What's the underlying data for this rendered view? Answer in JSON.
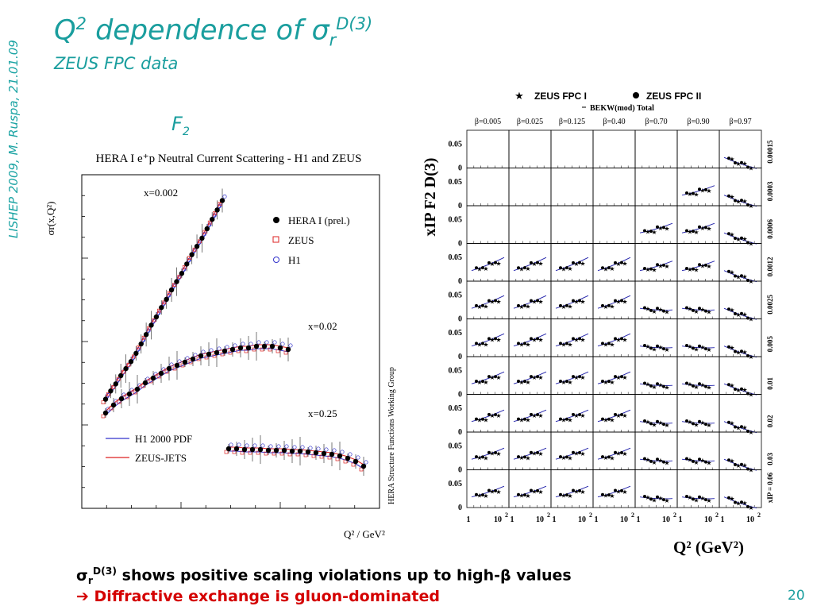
{
  "slide": {
    "side_label": "LISHEP 2009, M. Ruspa, 21.01.09",
    "title_pre": "Q",
    "title_sup": "2",
    "title_mid": " dependence of σ",
    "title_sub": "r",
    "title_sup2": "D(3)",
    "subtitle": "ZEUS FPC data",
    "f2_label": "F",
    "f2_sub": "2",
    "bottom_line1_sym": "σ",
    "bottom_line1_sub": "r",
    "bottom_line1_sup": "D(3)",
    "bottom_line1_text": " shows positive scaling violations up to high-β values",
    "bottom_line2_arrow": "➔",
    "bottom_line2_text": " Diffractive exchange is gluon-dominated",
    "page_number": "20"
  },
  "chart_data": [
    {
      "type": "scatter",
      "title": "HERA I e⁺p Neutral Current Scattering - H1 and ZEUS",
      "xlabel": "Q² / GeV²",
      "ylabel": "σr(x,Q²)",
      "side_note": "HERA Structure Functions Working Group",
      "legend": [
        "HERA I (prel.)",
        "ZEUS",
        "H1"
      ],
      "fit_legend": [
        "H1 2000 PDF",
        "ZEUS-JETS"
      ],
      "series": [
        {
          "name": "x=0.002",
          "values": [
            0.05,
            0.12,
            0.18,
            0.25,
            0.31,
            0.37,
            0.44,
            0.52,
            0.6,
            0.68,
            0.75,
            0.83,
            0.9,
            0.98,
            1.05,
            1.12,
            1.2,
            1.28,
            1.35,
            1.42,
            1.5,
            1.58,
            1.66,
            1.74
          ]
        },
        {
          "name": "x=0.02",
          "values": [
            0.05,
            0.1,
            0.14,
            0.17,
            0.2,
            0.24,
            0.27,
            0.3,
            0.33,
            0.35,
            0.37,
            0.39,
            0.41,
            0.42,
            0.43,
            0.44,
            0.45,
            0.46,
            0.46,
            0.47,
            0.47,
            0.47,
            0.46,
            0.45
          ]
        },
        {
          "name": "x=0.25",
          "values": [
            0.4,
            0.4,
            0.39,
            0.39,
            0.39,
            0.38,
            0.38,
            0.38,
            0.37,
            0.37,
            0.36,
            0.35,
            0.34,
            0.33,
            0.31,
            0.28,
            0.24,
            0.18
          ]
        }
      ]
    },
    {
      "type": "scatter",
      "ylabel": "xIP F2 D(3)",
      "xlabel": "Q² (GeV²)",
      "legend": [
        "ZEUS FPC I",
        "ZEUS FPC II"
      ],
      "fit_legend": [
        "BEKW(mod) Total"
      ],
      "columns": [
        "β=0.005",
        "β=0.025",
        "β=0.125",
        "β=0.40",
        "β=0.70",
        "β=0.90",
        "β=0.97"
      ],
      "rows": [
        "0.00015",
        "0.0003",
        "0.0006",
        "0.0012",
        "0.0025",
        "0.005",
        "0.01",
        "0.02",
        "0.03",
        "xIP = 0.06"
      ],
      "y_ticks": [
        "0",
        "0.05"
      ],
      "x_tick_labels": [
        "1",
        "10",
        "10",
        "10",
        "10",
        "10",
        "10",
        "10"
      ],
      "x_tick_sups": [
        "",
        "2",
        "2",
        "2",
        "2",
        "2",
        "2",
        "2"
      ],
      "x_tick_ones": [
        "1",
        "1",
        "1",
        "1",
        "1",
        "1"
      ]
    }
  ]
}
